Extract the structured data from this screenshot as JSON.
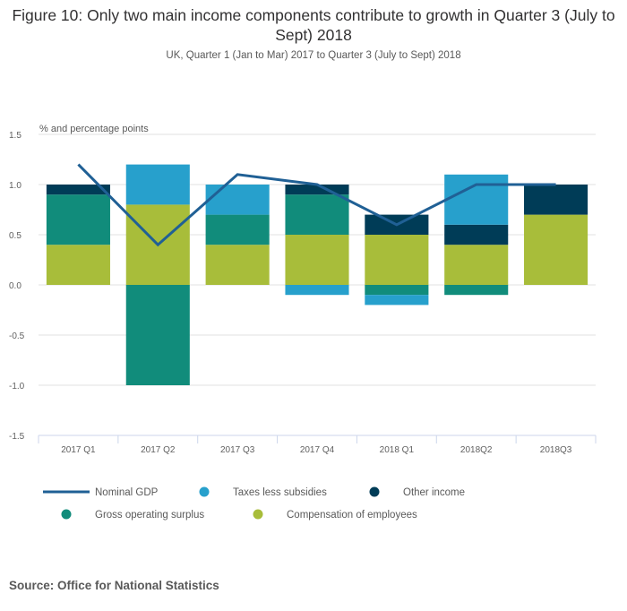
{
  "chart_data": {
    "type": "bar",
    "stacked": true,
    "title": "Figure 10: Only two main income components contribute to growth in Quarter 3 (July to Sept) 2018",
    "subtitle": "UK, Quarter 1 (Jan to Mar) 2017 to Quarter 3 (July to Sept) 2018",
    "ylabel": "% and percentage points",
    "xlabel": "",
    "ylim": [
      -1.5,
      1.5
    ],
    "yticks": [
      "1.5",
      "1.0",
      "0.5",
      "0.0",
      "-0.5",
      "-1.0",
      "-1.5"
    ],
    "ytick_values": [
      1.5,
      1.0,
      0.5,
      0.0,
      -0.5,
      -1.0,
      -1.5
    ],
    "grid": true,
    "categories": [
      "2017 Q1",
      "2017 Q2",
      "2017 Q3",
      "2017 Q4",
      "2018 Q1",
      "2018Q2",
      "2018Q3"
    ],
    "series": [
      {
        "name": "Compensation of employees",
        "kind": "bar",
        "color": "#a8bd3a",
        "values": [
          0.4,
          0.8,
          0.4,
          0.5,
          0.5,
          0.4,
          0.7
        ]
      },
      {
        "name": "Gross operating surplus",
        "kind": "bar",
        "color": "#118c7b",
        "values": [
          0.5,
          -1.0,
          0.3,
          0.4,
          -0.1,
          -0.1,
          0.0
        ]
      },
      {
        "name": "Other income",
        "kind": "bar",
        "color": "#003c57",
        "values": [
          0.1,
          0.0,
          0.0,
          0.1,
          0.2,
          0.2,
          0.3
        ]
      },
      {
        "name": "Taxes less subsidies",
        "kind": "bar",
        "color": "#27a0cc",
        "values": [
          0.0,
          0.4,
          0.3,
          -0.1,
          -0.1,
          0.5,
          0.0
        ]
      },
      {
        "name": "Nominal GDP",
        "kind": "line",
        "color": "#206095",
        "values": [
          1.2,
          0.4,
          1.1,
          1.0,
          0.6,
          1.0,
          1.0
        ]
      }
    ],
    "legend": {
      "position": "bottom",
      "order": [
        "Nominal GDP",
        "Taxes less subsidies",
        "Other income",
        "Gross operating surplus",
        "Compensation of employees"
      ]
    }
  },
  "source": "Source: Office for National Statistics"
}
